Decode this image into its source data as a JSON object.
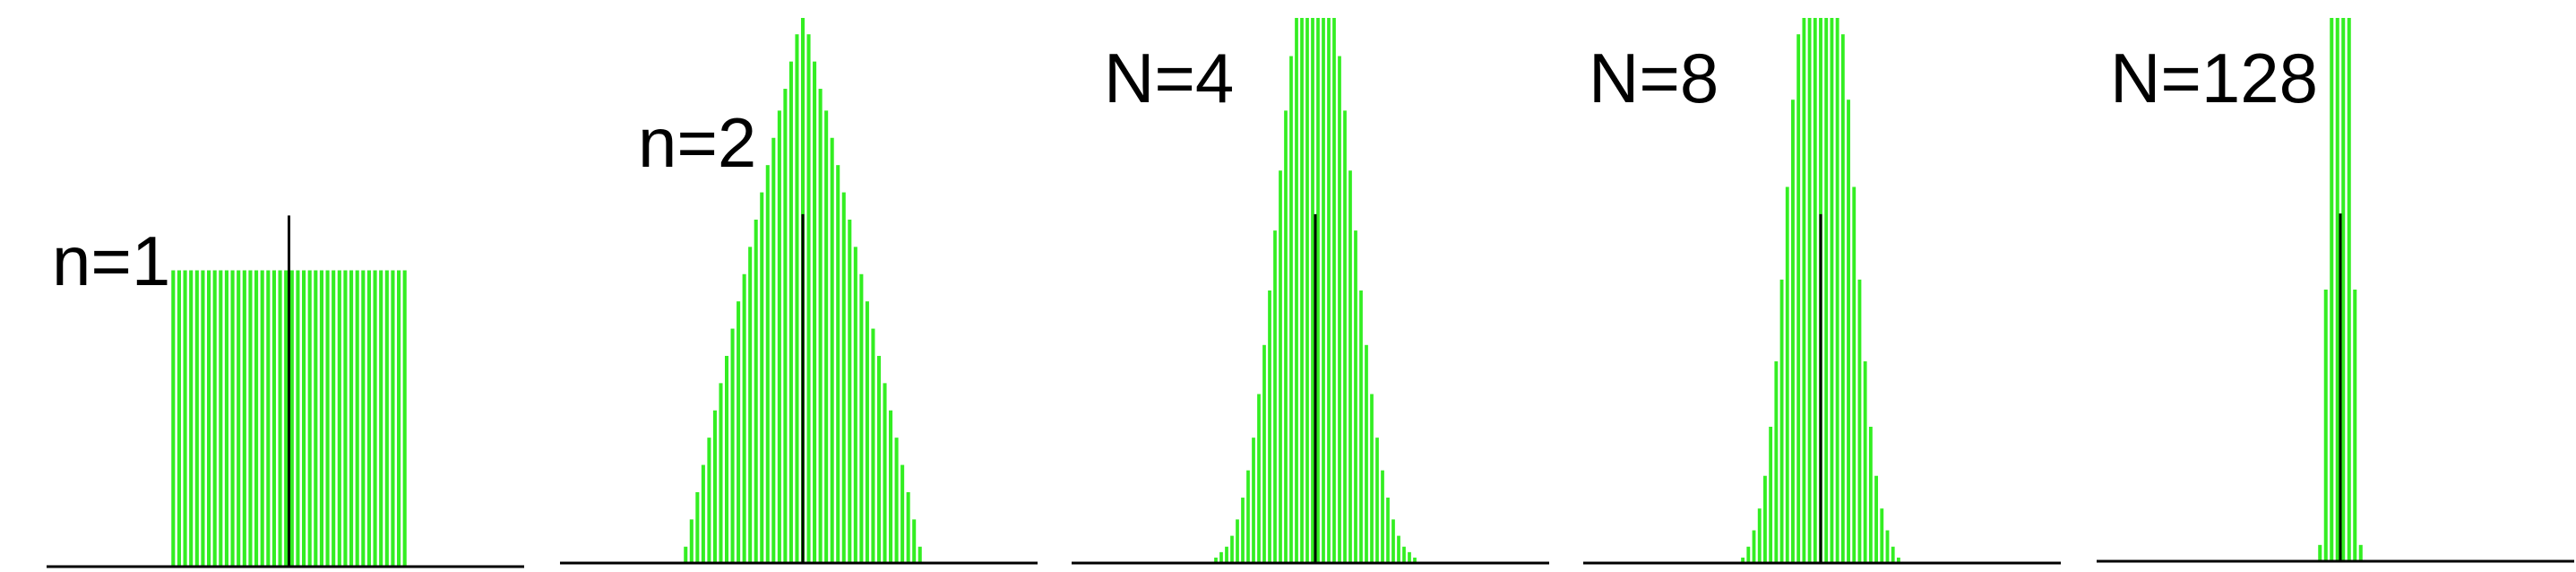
{
  "colors": {
    "bar": "#33ee22",
    "baseline": "#000000",
    "mean": "#000000",
    "background": "#ffffff"
  },
  "chart_data": [
    {
      "type": "bar",
      "title": "n=1",
      "xlabel": "",
      "ylabel": "",
      "grid": false,
      "ylim": [
        0,
        1
      ],
      "values": [
        0.54,
        0.54,
        0.54,
        0.54,
        0.54,
        0.54,
        0.54,
        0.54,
        0.54,
        0.54,
        0.54,
        0.54,
        0.54,
        0.54,
        0.54,
        0.54,
        0.54,
        0.54,
        0.54,
        0.54,
        0.54,
        0.54,
        0.54,
        0.54,
        0.54,
        0.54,
        0.54,
        0.54,
        0.54,
        0.54,
        0.54,
        0.54,
        0.54,
        0.54,
        0.54,
        0.54,
        0.54,
        0.54,
        0.54,
        0.54
      ],
      "mean_marker": 0.64
    },
    {
      "type": "bar",
      "title": "n=2",
      "xlabel": "",
      "ylabel": "",
      "grid": false,
      "ylim": [
        0,
        1
      ],
      "values": [
        0.03,
        0.08,
        0.13,
        0.18,
        0.23,
        0.28,
        0.33,
        0.38,
        0.43,
        0.48,
        0.53,
        0.58,
        0.63,
        0.68,
        0.73,
        0.78,
        0.83,
        0.87,
        0.92,
        0.97,
        1.0,
        0.97,
        0.92,
        0.87,
        0.83,
        0.78,
        0.73,
        0.68,
        0.63,
        0.58,
        0.53,
        0.48,
        0.43,
        0.38,
        0.33,
        0.28,
        0.23,
        0.18,
        0.13,
        0.08,
        0.03
      ],
      "mean_marker": 0.64
    },
    {
      "type": "bar",
      "title": "N=4",
      "xlabel": "",
      "ylabel": "",
      "grid": false,
      "ylim": [
        0,
        1
      ],
      "values": [
        0.01,
        0.02,
        0.03,
        0.05,
        0.08,
        0.12,
        0.17,
        0.23,
        0.31,
        0.4,
        0.5,
        0.61,
        0.72,
        0.83,
        0.93,
        1.0,
        1.0,
        1.0,
        1.0,
        1.0,
        1.0,
        1.0,
        1.0,
        0.93,
        0.83,
        0.72,
        0.61,
        0.5,
        0.4,
        0.31,
        0.23,
        0.17,
        0.12,
        0.08,
        0.05,
        0.03,
        0.02,
        0.01
      ],
      "mean_marker": 0.64
    },
    {
      "type": "bar",
      "title": "N=8",
      "xlabel": "",
      "ylabel": "",
      "grid": false,
      "ylim": [
        0,
        1
      ],
      "values": [
        0.01,
        0.03,
        0.06,
        0.1,
        0.16,
        0.25,
        0.37,
        0.52,
        0.69,
        0.85,
        0.97,
        1.0,
        1.0,
        1.0,
        1.0,
        1.0,
        1.0,
        1.0,
        0.97,
        0.85,
        0.69,
        0.52,
        0.37,
        0.25,
        0.16,
        0.1,
        0.06,
        0.03,
        0.01
      ],
      "mean_marker": 0.64
    },
    {
      "type": "bar",
      "title": "N=128",
      "xlabel": "",
      "ylabel": "",
      "grid": false,
      "ylim": [
        0,
        1
      ],
      "values": [
        0.03,
        0.5,
        1.0,
        1.0,
        1.0,
        1.0,
        0.5,
        0.03
      ],
      "mean_marker": 0.64
    }
  ]
}
